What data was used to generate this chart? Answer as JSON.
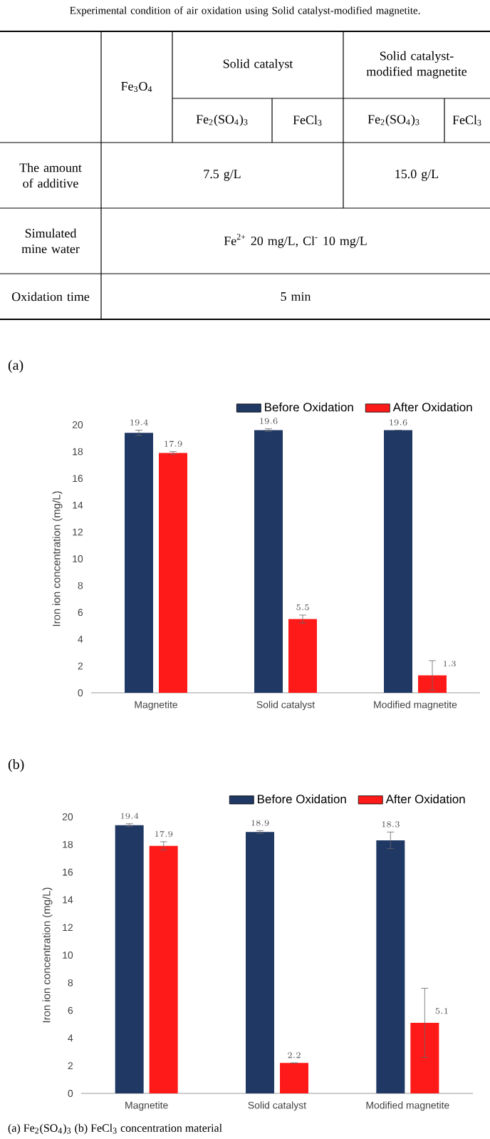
{
  "chart_data": [
    {
      "type": "other",
      "title": "Experimental condition of air oxidation using Solid catalyst-modified magnetite.",
      "annotations": [
        "Fe$_{3}$O$_{4}$",
        "Solid catalyst",
        "Solid catalyst-modified magnetite",
        "Fe$_{2}$(SO$_{4}$)$_{3}$",
        "FeCl$_{3}$",
        "Fe$_{2}$(SO$_{4}$)$_{3}$",
        "FeCl$_{3}$",
        "The amount of additive",
        "7.5 g/L",
        "15.0 g/L",
        "Simulated mine water",
        "Fe$^{2+}$ 20 mg/L, Cl$^{-}$ 10 mg/L",
        "Oxidation time",
        "5 min"
      ]
    },
    {
      "type": "bar",
      "title": "(a)",
      "categories": [
        "Magnetite",
        "Solid catalyst",
        "Modified magnetite"
      ],
      "ylabel": "Iron ion concentration (mg/L)",
      "series": [
        {
          "name": "Before Oxidation",
          "color": "#203864",
          "values": [
            19.4,
            19.6,
            19.6
          ],
          "errors": [
            0.2,
            0.1,
            null
          ]
        },
        {
          "name": "After Oxidation",
          "color": "#ff1a1a",
          "values": [
            17.9,
            5.5,
            1.3
          ],
          "errors": [
            0.1,
            0.3,
            1.1
          ]
        }
      ],
      "ylim": [
        0,
        20
      ],
      "yticks": [
        0,
        2,
        4,
        6,
        8,
        10,
        12,
        14,
        16,
        18,
        20
      ],
      "data_labels": true,
      "legend": "top"
    },
    {
      "type": "bar",
      "title": "(b)",
      "categories": [
        "Magnetite",
        "Solid catalyst",
        "Modified magnetite"
      ],
      "ylabel": "Iron ion concentration (mg/L)",
      "series": [
        {
          "name": "Before Oxidation",
          "color": "#203864",
          "values": [
            19.4,
            18.9,
            18.3
          ],
          "errors": [
            0.1,
            0.1,
            0.6
          ]
        },
        {
          "name": "After Oxidation",
          "color": "#ff1a1a",
          "values": [
            17.9,
            2.2,
            5.1
          ],
          "errors": [
            0.3,
            null,
            2.5
          ]
        }
      ],
      "ylim": [
        0,
        20
      ],
      "yticks": [
        0,
        2,
        4,
        6,
        8,
        10,
        12,
        14,
        16,
        18,
        20
      ],
      "data_labels": true,
      "legend": "top",
      "annotations": [
        "(a) Fe$_{2}$(SO$_{4}$)$_{3}$ (b) FeCl$_{3}$ concentration material"
      ]
    }
  ]
}
